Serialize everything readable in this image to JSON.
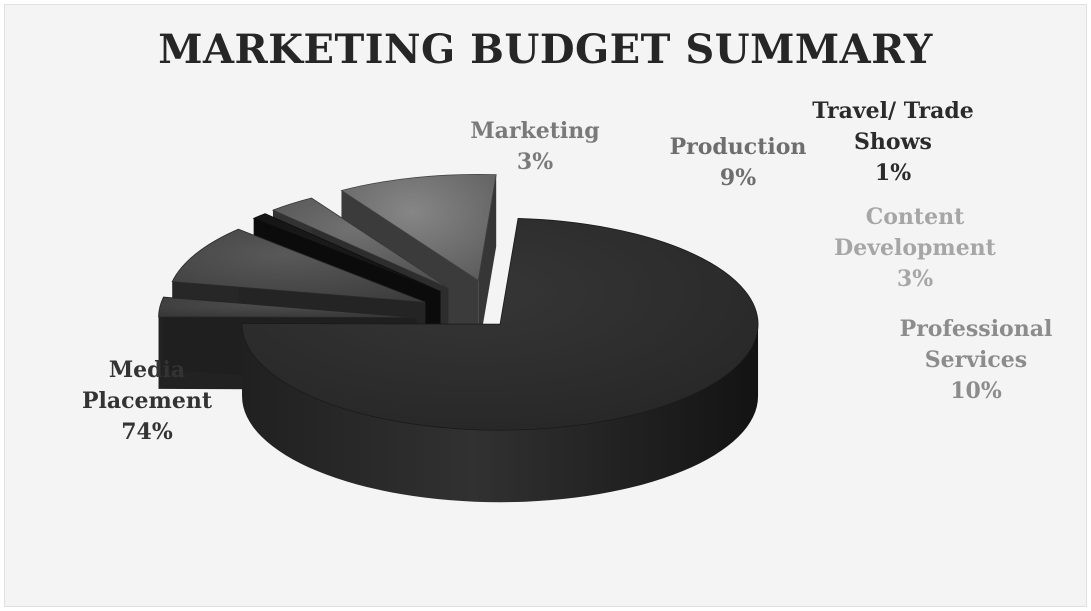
{
  "chart_data": {
    "type": "pie",
    "title": "MARKETING BUDGET SUMMARY",
    "style": "3d-exploded",
    "slices": [
      {
        "name": "Media Placement",
        "name_lines": [
          "Media",
          "Placement"
        ],
        "value": 74,
        "label": "74%",
        "color": "#2b2b2b",
        "label_color": "#333333"
      },
      {
        "name": "Marketing",
        "name_lines": [
          "Marketing"
        ],
        "value": 3,
        "label": "3%",
        "color": "#3e3e3e",
        "label_color": "#7a7a7a"
      },
      {
        "name": "Production",
        "name_lines": [
          "Production"
        ],
        "value": 9,
        "label": "9%",
        "color": "#474747",
        "label_color": "#6e6e6e"
      },
      {
        "name": "Travel/ Trade Shows",
        "name_lines": [
          "Travel/ Trade",
          "Shows"
        ],
        "value": 1,
        "label": "1%",
        "color": "#151515",
        "label_color": "#2b2b2b"
      },
      {
        "name": "Content Development",
        "name_lines": [
          "Content",
          "Development"
        ],
        "value": 3,
        "label": "3%",
        "color": "#5a5a5a",
        "label_color": "#a6a6a6"
      },
      {
        "name": "Professional Services",
        "name_lines": [
          "Professional",
          "Services"
        ],
        "value": 10,
        "label": "10%",
        "color": "#6b6b6b",
        "label_color": "#8c8c8c"
      }
    ],
    "legend": "none",
    "data_labels": "outside"
  }
}
